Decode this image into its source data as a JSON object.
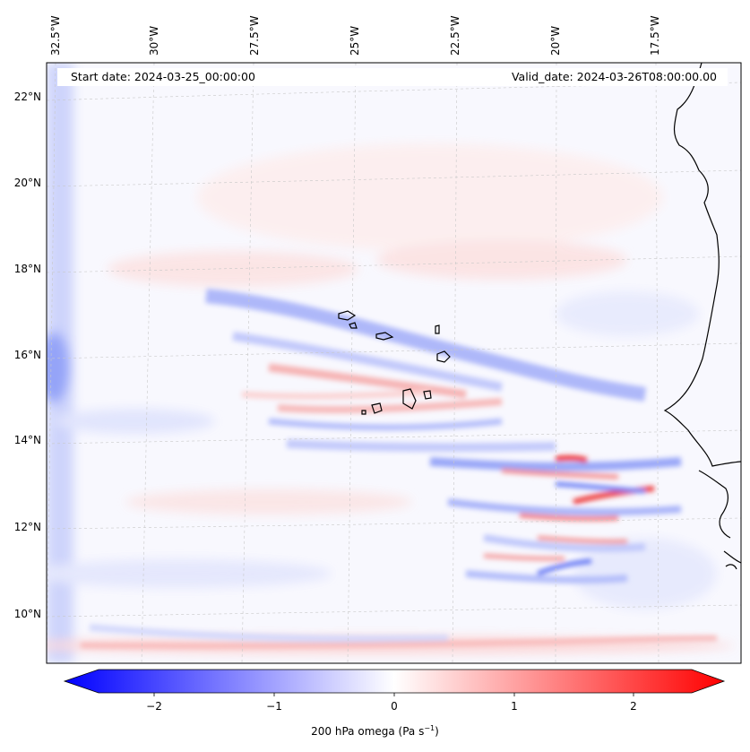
{
  "map": {
    "start_date": "Start date: 2024-03-25_00:00:00",
    "valid_date": "Valid_date: 2024-03-26T08:00:00.00",
    "lon_labels": [
      "32.5°W",
      "30°W",
      "27.5°W",
      "25°W",
      "22.5°W",
      "20°W",
      "17.5°W"
    ],
    "lat_labels": [
      "22°N",
      "20°N",
      "18°N",
      "16°N",
      "14°N",
      "12°N",
      "10°N"
    ],
    "region": "Cape Verde / West African coast",
    "colorbar": {
      "label_prefix": "200 hPa omega (Pa s",
      "label_exp": "−1",
      "label_suffix": ")",
      "ticks": [
        "−2",
        "−1",
        "0",
        "1",
        "2"
      ],
      "tick_values": [
        -2,
        -1,
        0,
        1,
        2
      ],
      "range": [
        -2.5,
        2.5
      ],
      "colors": {
        "neg": "#0000ff",
        "mid": "#ffffff",
        "pos": "#ff0000"
      }
    }
  }
}
